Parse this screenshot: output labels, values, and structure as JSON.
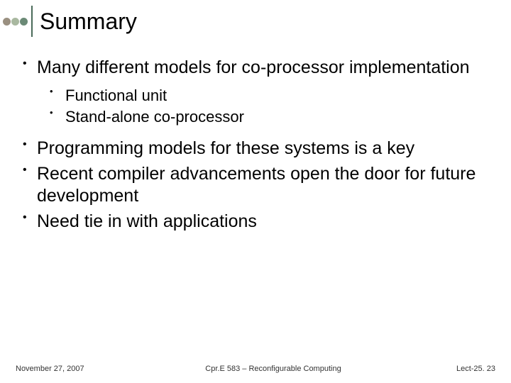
{
  "header": {
    "dots": [
      "#9a9080",
      "#a9b8a0",
      "#6b8a76"
    ],
    "vline_color": "#4a6b5a",
    "title": "Summary"
  },
  "bullets": {
    "b1": "Many different models for co-processor implementation",
    "sub1": "Functional unit",
    "sub2": "Stand-alone co-processor",
    "b2": "Programming models for these systems is a key",
    "b3": "Recent compiler advancements open the door for future development",
    "b4": "Need tie in with applications"
  },
  "footer": {
    "left": "November 27, 2007",
    "center": "Cpr.E 583 – Reconfigurable Computing",
    "right": "Lect-25. 23"
  }
}
